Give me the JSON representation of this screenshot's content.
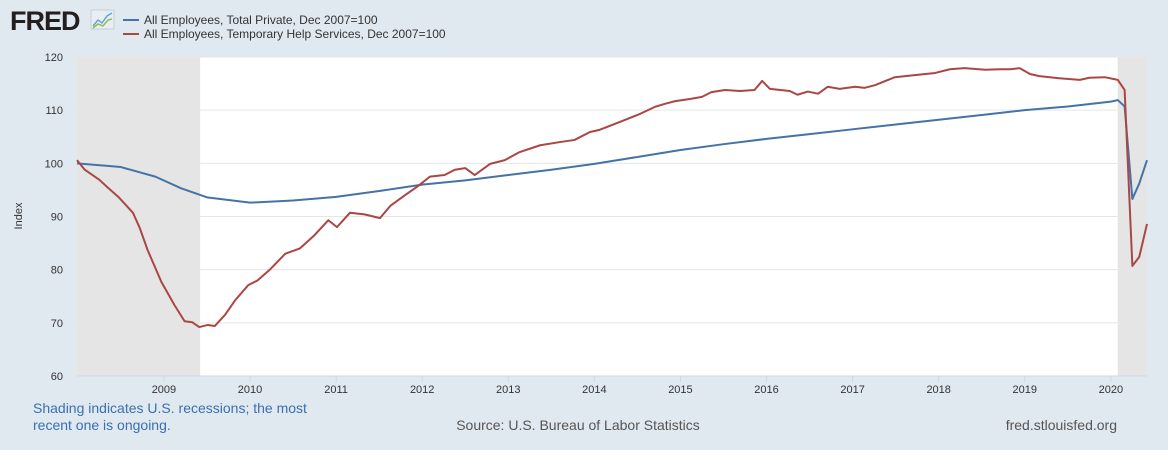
{
  "header": {
    "logo_text": "FRED",
    "logo_icon": "fred-chart-icon"
  },
  "chart_data": {
    "type": "line",
    "title": "",
    "xlabel": "",
    "ylabel": "Index",
    "xlim": [
      2007.99,
      2020.42
    ],
    "ylim": [
      60,
      120
    ],
    "yticks": [
      60,
      70,
      80,
      90,
      100,
      110,
      120
    ],
    "xticks": [
      2009,
      2010,
      2011,
      2012,
      2013,
      2014,
      2015,
      2016,
      2017,
      2018,
      2019,
      2020
    ],
    "grid": true,
    "legend_placement": "top-left",
    "recessions": [
      [
        2007.99,
        2009.42
      ],
      [
        2020.08,
        2020.42
      ]
    ],
    "series": [
      {
        "name": "All Employees, Total Private, Dec 2007=100",
        "color": "#4572a7",
        "x": [
          2007.99,
          2008.5,
          2008.9,
          2009.2,
          2009.5,
          2010.0,
          2010.5,
          2011.0,
          2011.5,
          2012.0,
          2012.5,
          2013.0,
          2013.5,
          2014.0,
          2014.5,
          2015.0,
          2015.5,
          2016.0,
          2016.5,
          2017.0,
          2017.5,
          2018.0,
          2018.5,
          2019.0,
          2019.5,
          2020.0,
          2020.08,
          2020.16,
          2020.25,
          2020.33,
          2020.42
        ],
        "y": [
          100,
          99.3,
          97.5,
          95.3,
          93.6,
          92.6,
          93.0,
          93.7,
          94.8,
          96.0,
          96.8,
          97.8,
          98.8,
          99.9,
          101.2,
          102.5,
          103.6,
          104.6,
          105.5,
          106.4,
          107.3,
          108.2,
          109.1,
          110.0,
          110.7,
          111.6,
          111.9,
          110.7,
          93.3,
          96.2,
          100.6
        ]
      },
      {
        "name": "All Employees, Temporary Help Services, Dec 2007=100",
        "color": "#aa4643",
        "x": [
          2007.99,
          2008.08,
          2008.25,
          2008.35,
          2008.47,
          2008.64,
          2008.72,
          2008.81,
          2008.97,
          2009.12,
          2009.24,
          2009.33,
          2009.41,
          2009.51,
          2009.59,
          2009.71,
          2009.83,
          2009.98,
          2010.09,
          2010.23,
          2010.41,
          2010.58,
          2010.75,
          2010.91,
          2011.01,
          2011.16,
          2011.33,
          2011.51,
          2011.63,
          2011.8,
          2011.95,
          2012.09,
          2012.26,
          2012.38,
          2012.5,
          2012.61,
          2012.79,
          2012.96,
          2013.13,
          2013.37,
          2013.6,
          2013.77,
          2013.95,
          2014.06,
          2014.3,
          2014.53,
          2014.7,
          2014.82,
          2014.94,
          2015.11,
          2015.25,
          2015.36,
          2015.52,
          2015.69,
          2015.86,
          2015.95,
          2016.04,
          2016.27,
          2016.36,
          2016.48,
          2016.6,
          2016.71,
          2016.85,
          2017.03,
          2017.14,
          2017.26,
          2017.49,
          2017.72,
          2017.96,
          2018.13,
          2018.3,
          2018.54,
          2018.71,
          2018.83,
          2018.94,
          2019.06,
          2019.17,
          2019.4,
          2019.64,
          2019.75,
          2019.93,
          2020.08,
          2020.16,
          2020.25,
          2020.33,
          2020.42
        ],
        "y": [
          100.6,
          98.8,
          96.9,
          95.4,
          93.7,
          90.7,
          87.8,
          83.7,
          77.7,
          73.4,
          70.3,
          70.1,
          69.2,
          69.6,
          69.4,
          71.5,
          74.3,
          77.1,
          78.0,
          80.0,
          83.0,
          84.0,
          86.5,
          89.3,
          88.0,
          90.7,
          90.4,
          89.7,
          92.0,
          94.0,
          95.7,
          97.5,
          97.8,
          98.8,
          99.1,
          97.8,
          99.9,
          100.6,
          102.1,
          103.4,
          104.0,
          104.4,
          105.9,
          106.3,
          107.8,
          109.3,
          110.6,
          111.2,
          111.7,
          112.1,
          112.5,
          113.4,
          113.8,
          113.6,
          113.8,
          115.5,
          114.0,
          113.6,
          112.9,
          113.5,
          113.1,
          114.4,
          114.0,
          114.4,
          114.2,
          114.7,
          116.2,
          116.6,
          117.0,
          117.7,
          117.9,
          117.6,
          117.7,
          117.7,
          117.9,
          116.8,
          116.4,
          116.0,
          115.7,
          116.1,
          116.2,
          115.7,
          113.8,
          80.7,
          82.4,
          88.6
        ]
      }
    ]
  },
  "footer": {
    "note_line1": "Shading indicates U.S. recessions; the most",
    "note_line2": "recent one is ongoing.",
    "source": "Source: U.S. Bureau of Labor Statistics",
    "site": "fred.stlouisfed.org"
  }
}
